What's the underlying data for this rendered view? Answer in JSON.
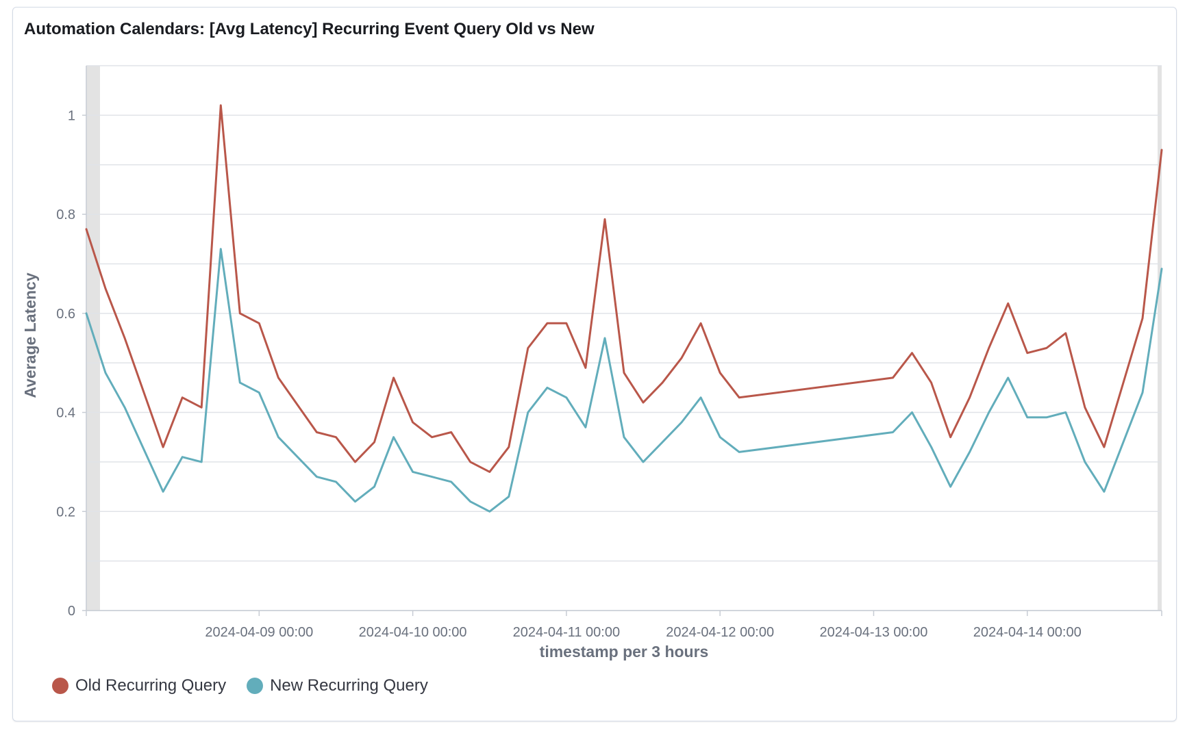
{
  "panel": {
    "title": "Automation Calendars: [Avg Latency] Recurring Event Query Old vs New"
  },
  "chart_data": {
    "type": "line",
    "title": "Automation Calendars: [Avg Latency] Recurring Event Query Old vs New",
    "xlabel": "timestamp per 3 hours",
    "ylabel": "Average Latency",
    "ylim": [
      0,
      1.1
    ],
    "yticks": [
      0,
      0.2,
      0.4,
      0.6,
      0.8,
      1
    ],
    "xlim": [
      "2024-04-07 21:00",
      "2024-04-14 21:00"
    ],
    "xticks": [
      "2024-04-09 00:00",
      "2024-04-10 00:00",
      "2024-04-11 00:00",
      "2024-04-12 00:00",
      "2024-04-13 00:00",
      "2024-04-14 00:00"
    ],
    "grid": true,
    "legend_position": "bottom-left",
    "x": [
      "2024-04-07 21:00",
      "2024-04-08 00:00",
      "2024-04-08 03:00",
      "2024-04-08 09:00",
      "2024-04-08 12:00",
      "2024-04-08 15:00",
      "2024-04-08 18:00",
      "2024-04-08 21:00",
      "2024-04-09 00:00",
      "2024-04-09 03:00",
      "2024-04-09 09:00",
      "2024-04-09 12:00",
      "2024-04-09 15:00",
      "2024-04-09 18:00",
      "2024-04-09 21:00",
      "2024-04-10 00:00",
      "2024-04-10 03:00",
      "2024-04-10 06:00",
      "2024-04-10 09:00",
      "2024-04-10 12:00",
      "2024-04-10 15:00",
      "2024-04-10 18:00",
      "2024-04-10 21:00",
      "2024-04-11 00:00",
      "2024-04-11 03:00",
      "2024-04-11 06:00",
      "2024-04-11 09:00",
      "2024-04-11 12:00",
      "2024-04-11 15:00",
      "2024-04-11 18:00",
      "2024-04-11 21:00",
      "2024-04-12 00:00",
      "2024-04-12 03:00",
      "2024-04-13 03:00",
      "2024-04-13 06:00",
      "2024-04-13 09:00",
      "2024-04-13 12:00",
      "2024-04-13 15:00",
      "2024-04-13 18:00",
      "2024-04-13 21:00",
      "2024-04-14 00:00",
      "2024-04-14 03:00",
      "2024-04-14 06:00",
      "2024-04-14 09:00",
      "2024-04-14 12:00",
      "2024-04-14 18:00",
      "2024-04-14 21:00"
    ],
    "series": [
      {
        "name": "Old Recurring Query",
        "color": "#b9574a",
        "values": [
          0.77,
          0.65,
          0.55,
          0.33,
          0.43,
          0.41,
          1.02,
          0.6,
          0.58,
          0.47,
          0.36,
          0.35,
          0.3,
          0.34,
          0.47,
          0.38,
          0.35,
          0.36,
          0.3,
          0.28,
          0.33,
          0.53,
          0.58,
          0.58,
          0.49,
          0.79,
          0.48,
          0.42,
          0.46,
          0.51,
          0.58,
          0.48,
          0.43,
          0.47,
          0.52,
          0.46,
          0.35,
          0.43,
          0.53,
          0.62,
          0.52,
          0.53,
          0.56,
          0.41,
          0.33,
          0.59,
          0.93
        ]
      },
      {
        "name": "New Recurring Query",
        "color": "#62adbb",
        "values": [
          0.6,
          0.48,
          0.41,
          0.24,
          0.31,
          0.3,
          0.73,
          0.46,
          0.44,
          0.35,
          0.27,
          0.26,
          0.22,
          0.25,
          0.35,
          0.28,
          0.27,
          0.26,
          0.22,
          0.2,
          0.23,
          0.4,
          0.45,
          0.43,
          0.37,
          0.55,
          0.35,
          0.3,
          0.34,
          0.38,
          0.43,
          0.35,
          0.32,
          0.36,
          0.4,
          0.33,
          0.25,
          0.32,
          0.4,
          0.47,
          0.39,
          0.39,
          0.4,
          0.3,
          0.24,
          0.44,
          0.69
        ]
      }
    ]
  }
}
